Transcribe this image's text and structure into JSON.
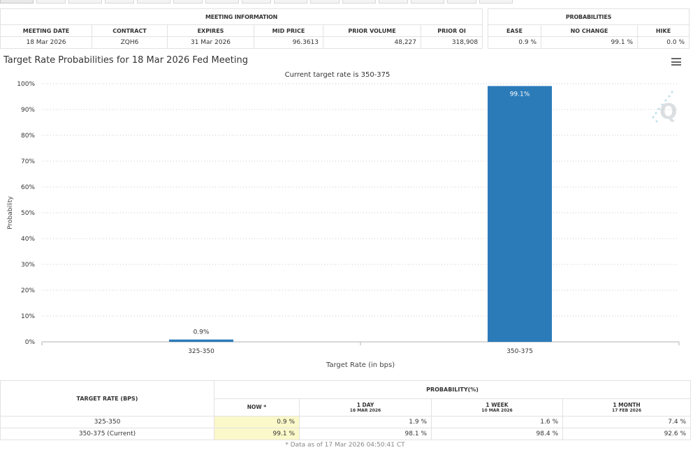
{
  "meeting_info": {
    "header": "MEETING INFORMATION",
    "columns": [
      "MEETING DATE",
      "CONTRACT",
      "EXPIRES",
      "MID PRICE",
      "PRIOR VOLUME",
      "PRIOR OI"
    ],
    "row": [
      "18 Mar 2026",
      "ZQH6",
      "31 Mar 2026",
      "96.3613",
      "48,227",
      "318,908"
    ]
  },
  "probabilities": {
    "header": "PROBABILITIES",
    "columns": [
      "EASE",
      "NO CHANGE",
      "HIKE"
    ],
    "row": [
      "0.9 %",
      "99.1 %",
      "0.0 %"
    ]
  },
  "chart_title": "Target Rate Probabilities for 18 Mar 2026 Fed Meeting",
  "chart_data": {
    "type": "bar",
    "title": "Target Rate Probabilities for 18 Mar 2026 Fed Meeting",
    "subtitle": "Current target rate is 350-375",
    "xlabel": "Target Rate (in bps)",
    "ylabel": "Probability",
    "categories": [
      "325-350",
      "350-375"
    ],
    "values": [
      0.9,
      99.1
    ],
    "data_labels": [
      "0.9%",
      "99.1%"
    ],
    "ylim": [
      0,
      100
    ],
    "yticks": [
      "0%",
      "10%",
      "20%",
      "30%",
      "40%",
      "50%",
      "60%",
      "70%",
      "80%",
      "90%",
      "100%"
    ],
    "bar_color": "#2b7bb9",
    "grid": true,
    "legend": "none"
  },
  "bottom_table": {
    "rate_header": "TARGET RATE (BPS)",
    "prob_header": "PROBABILITY(%)",
    "cols": [
      {
        "line1": "NOW *",
        "line2": ""
      },
      {
        "line1": "1 DAY",
        "line2": "16 MAR 2026"
      },
      {
        "line1": "1 WEEK",
        "line2": "10 MAR 2026"
      },
      {
        "line1": "1 MONTH",
        "line2": "17 FEB 2026"
      }
    ],
    "rows": [
      {
        "rate": "325-350",
        "values": [
          "0.9 %",
          "1.9 %",
          "1.6 %",
          "7.4 %"
        ]
      },
      {
        "rate": "350-375 (Current)",
        "values": [
          "99.1 %",
          "98.1 %",
          "98.4 %",
          "92.6 %"
        ]
      }
    ],
    "now_highlight": "#fbf8c9"
  },
  "footnote": "* Data as of 17 Mar 2026 04:50:41 CT",
  "icons": {
    "menu": "hamburger-menu-icon",
    "watermark": "q-logo-icon"
  }
}
